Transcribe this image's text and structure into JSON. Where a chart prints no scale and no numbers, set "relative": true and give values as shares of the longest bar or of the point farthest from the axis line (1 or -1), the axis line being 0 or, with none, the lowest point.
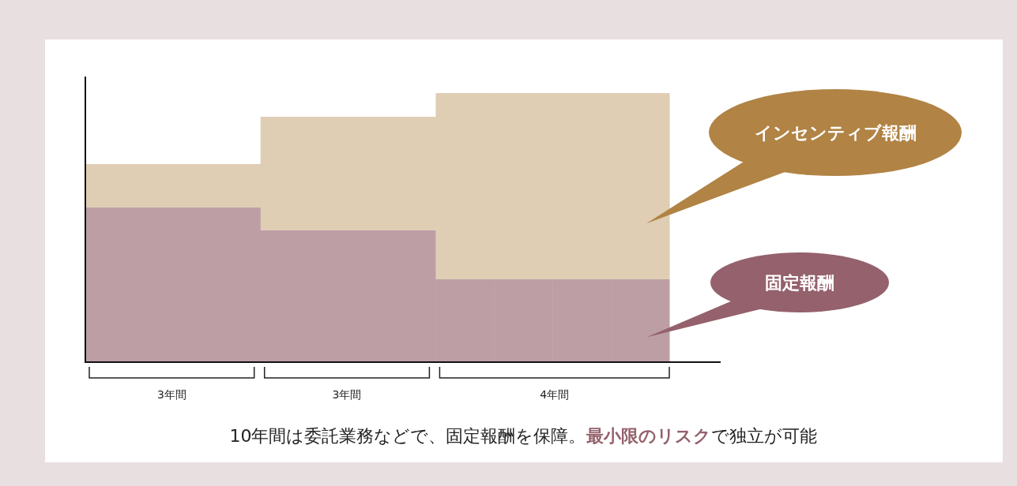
{
  "chart_data": {
    "type": "bar",
    "stacked": true,
    "relative": true,
    "categories": [
      null,
      null,
      null,
      null,
      null,
      null,
      null,
      null,
      null,
      null
    ],
    "series": [
      {
        "name": "固定報酬",
        "color": "#bd9ea5",
        "values": [
          0.575,
          0.575,
          0.575,
          0.49,
          0.49,
          0.49,
          0.308,
          0.308,
          0.308,
          0.308
        ]
      },
      {
        "name": "インセンティブ報酬",
        "color": "#dfcdb4",
        "values": [
          0.161,
          0.161,
          0.161,
          0.422,
          0.422,
          0.422,
          0.692,
          0.692,
          0.692,
          0.692
        ]
      }
    ],
    "annotations": [
      "3年間",
      "3年間",
      "4年間",
      "10年間は委託業務などで、固定報酬を保障。",
      "最小限のリスク",
      "で独立が可能"
    ]
  }
}
